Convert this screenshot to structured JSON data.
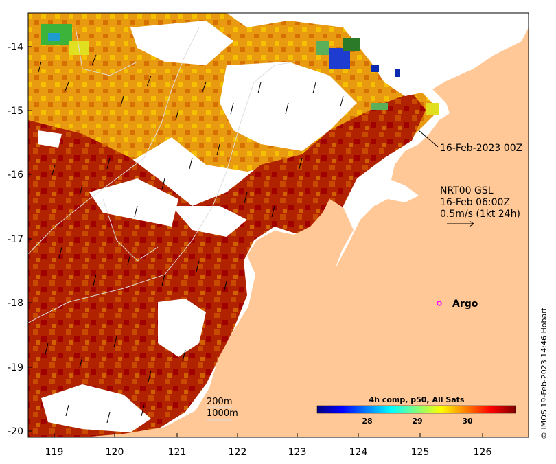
{
  "map": {
    "x_ticks": [
      "119",
      "120",
      "121",
      "122",
      "123",
      "124",
      "125",
      "126"
    ],
    "y_ticks": [
      "-14",
      "-15",
      "-16",
      "-17",
      "-18",
      "-19",
      "-20"
    ],
    "lon_range": [
      118.6,
      126.6
    ],
    "lat_range": [
      -20.1,
      -13.5
    ],
    "land_color": "#ffc896",
    "no_data_color": "#ffffff",
    "sst_hot_color": "#a00000"
  },
  "annotations": {
    "track_time_label": "16-Feb-2023 00Z",
    "current_title": "NRT00 GSL",
    "current_time": "16-Feb 06:00Z",
    "current_scale": "0.5m/s (1kt 24h)",
    "argo_label": "Argo",
    "depth_200": "200m",
    "depth_1000": "1000m"
  },
  "colorbar": {
    "title": "4h comp, p50, All Sats",
    "ticks": [
      "28",
      "29",
      "30"
    ],
    "stops": [
      "#00007f",
      "#0000ff",
      "#007fff",
      "#00ffff",
      "#7fff7f",
      "#ffff00",
      "#ff7f00",
      "#ff0000",
      "#7f0000"
    ]
  },
  "credit": "© IMOS 19-Feb-2023 14:46 Hobart"
}
